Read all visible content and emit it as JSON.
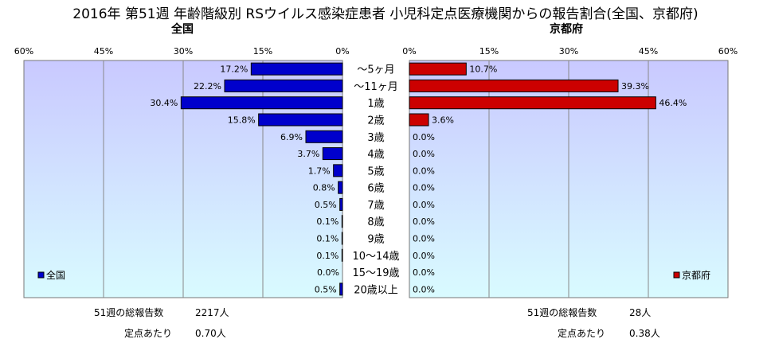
{
  "title": "2016年 第51週 年齢階級別 RSウイルス感染症患者 小児科定点医療機関からの報告割合(全国、京都府)",
  "chart_data": [
    {
      "type": "bar",
      "orientation": "horizontal",
      "direction": "right-to-left",
      "title": "全国",
      "categories": [
        "～5ヶ月",
        "～11ヶ月",
        "1歳",
        "2歳",
        "3歳",
        "4歳",
        "5歳",
        "6歳",
        "7歳",
        "8歳",
        "9歳",
        "10～14歳",
        "15～19歳",
        "20歳以上"
      ],
      "series": [
        {
          "name": "全国",
          "values": [
            17.2,
            22.2,
            30.4,
            15.8,
            6.9,
            3.7,
            1.7,
            0.8,
            0.5,
            0.1,
            0.1,
            0.1,
            0.0,
            0.5
          ],
          "color": "#0000cc"
        }
      ],
      "value_labels": [
        "17.2%",
        "22.2%",
        "30.4%",
        "15.8%",
        "6.9%",
        "3.7%",
        "1.7%",
        "0.8%",
        "0.5%",
        "0.1%",
        "0.1%",
        "0.1%",
        "0.0%",
        "0.5%"
      ],
      "xlim": [
        0,
        60
      ],
      "xticks": [
        "60%",
        "45%",
        "30%",
        "15%",
        "0%"
      ],
      "legend": "bottom-left",
      "plot_bg": [
        "#c9c9ff",
        "#d9fbff"
      ]
    },
    {
      "type": "bar",
      "orientation": "horizontal",
      "direction": "left-to-right",
      "title": "京都府",
      "categories": [
        "～5ヶ月",
        "～11ヶ月",
        "1歳",
        "2歳",
        "3歳",
        "4歳",
        "5歳",
        "6歳",
        "7歳",
        "8歳",
        "9歳",
        "10～14歳",
        "15～19歳",
        "20歳以上"
      ],
      "series": [
        {
          "name": "京都府",
          "values": [
            10.7,
            39.3,
            46.4,
            3.6,
            0.0,
            0.0,
            0.0,
            0.0,
            0.0,
            0.0,
            0.0,
            0.0,
            0.0,
            0.0
          ],
          "color": "#cc0000"
        }
      ],
      "value_labels": [
        "10.7%",
        "39.3%",
        "46.4%",
        "3.6%",
        "0.0%",
        "0.0%",
        "0.0%",
        "0.0%",
        "0.0%",
        "0.0%",
        "0.0%",
        "0.0%",
        "0.0%",
        "0.0%"
      ],
      "xlim": [
        0,
        60
      ],
      "xticks": [
        "0%",
        "15%",
        "30%",
        "45%",
        "60%"
      ],
      "legend": "bottom-right",
      "plot_bg": [
        "#c9c9ff",
        "#d9fbff"
      ]
    }
  ],
  "stats": {
    "national_total_label": "51週の総報告数",
    "national_total_value": "2217人",
    "national_per_label": "定点あたり",
    "national_per_value": "0.70人",
    "kyoto_total_label": "51週の総報告数",
    "kyoto_total_value": "28人",
    "kyoto_per_label": "定点あたり",
    "kyoto_per_value": "0.38人"
  }
}
